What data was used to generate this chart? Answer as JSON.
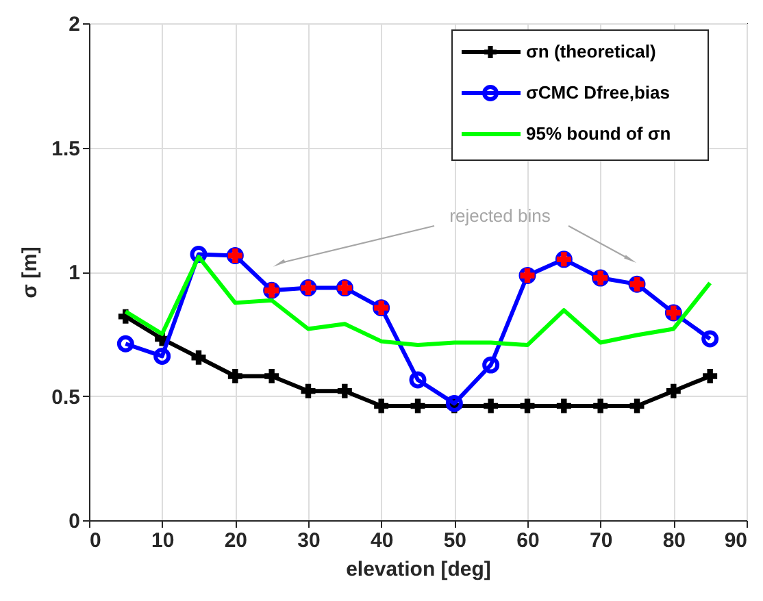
{
  "chart_data": {
    "type": "line",
    "xlabel": "elevation [deg]",
    "ylabel": "σ [m]",
    "xlim": [
      0,
      90
    ],
    "xticks": [
      0,
      10,
      20,
      30,
      40,
      50,
      60,
      70,
      80,
      90
    ],
    "ylim": [
      0,
      2
    ],
    "yticks": [
      0,
      0.5,
      1,
      1.5,
      2
    ],
    "grid": true,
    "legend": "top right",
    "annotations": [
      "rejected bins"
    ],
    "series": [
      {
        "name": "σn (theoretical)",
        "color": "#000000",
        "marker": "cross",
        "x": [
          5,
          10,
          15,
          20,
          25,
          30,
          35,
          40,
          45,
          50,
          55,
          60,
          65,
          70,
          75,
          80,
          85
        ],
        "values": [
          0.82,
          0.73,
          0.655,
          0.58,
          0.58,
          0.52,
          0.52,
          0.46,
          0.46,
          0.46,
          0.46,
          0.46,
          0.46,
          0.46,
          0.46,
          0.52,
          0.58
        ]
      },
      {
        "name": "σCMC Dfree,bias",
        "color": "#0000ff",
        "marker": "circle",
        "x": [
          5,
          10,
          15,
          20,
          25,
          30,
          35,
          40,
          45,
          50,
          55,
          60,
          65,
          70,
          75,
          80,
          85
        ],
        "values": [
          0.71,
          0.66,
          1.07,
          1.065,
          0.925,
          0.935,
          0.935,
          0.855,
          0.565,
          0.47,
          0.625,
          0.985,
          1.05,
          0.975,
          0.95,
          0.835,
          0.73
        ]
      },
      {
        "name": "95% bound of σn",
        "color": "#00ff00",
        "marker": "none",
        "x": [
          5,
          10,
          15,
          20,
          25,
          30,
          35,
          40,
          45,
          50,
          55,
          60,
          65,
          70,
          75,
          80,
          85
        ],
        "values": [
          0.84,
          0.75,
          1.06,
          0.875,
          0.885,
          0.77,
          0.79,
          0.72,
          0.705,
          0.715,
          0.715,
          0.705,
          0.845,
          0.715,
          0.745,
          0.77,
          0.955
        ]
      },
      {
        "type": "scatter",
        "color": "#ff0000",
        "marker": "cross",
        "x": [
          20,
          25,
          30,
          35,
          40,
          60,
          65,
          70,
          75,
          80
        ],
        "values": [
          1.065,
          0.925,
          0.935,
          0.935,
          0.855,
          0.985,
          1.05,
          0.975,
          0.95,
          0.835
        ]
      }
    ]
  }
}
